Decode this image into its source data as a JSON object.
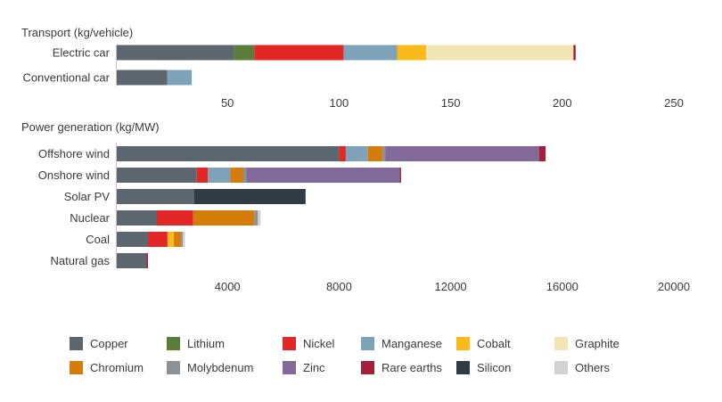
{
  "colors": {
    "Copper": "#5b666e",
    "Lithium": "#5b7c3a",
    "Nickel": "#e32726",
    "Manganese": "#7ea3b9",
    "Cobalt": "#fbb91a",
    "Graphite": "#f1e5b5",
    "Chromium": "#d47d0d",
    "Molybdenum": "#8a9197",
    "Zinc": "#83699a",
    "Rare earths": "#a3203c",
    "Silicon": "#2f3c45",
    "Others": "#d2d2d2"
  },
  "chart_data": [
    {
      "type": "bar",
      "orientation": "horizontal",
      "stacked": true,
      "title": "Transport (kg/vehicle)",
      "categories": [
        "Electric car",
        "Conventional car"
      ],
      "xlim": [
        0,
        250
      ],
      "xticks": [
        50,
        100,
        150,
        200,
        250
      ],
      "series": [
        {
          "name": "Copper",
          "values": [
            53,
            23
          ]
        },
        {
          "name": "Lithium",
          "values": [
            9,
            0
          ]
        },
        {
          "name": "Nickel",
          "values": [
            40,
            0
          ]
        },
        {
          "name": "Manganese",
          "values": [
            24,
            11
          ]
        },
        {
          "name": "Cobalt",
          "values": [
            13,
            0
          ]
        },
        {
          "name": "Graphite",
          "values": [
            66,
            0
          ]
        },
        {
          "name": "Rare earths",
          "values": [
            1,
            0
          ]
        }
      ]
    },
    {
      "type": "bar",
      "orientation": "horizontal",
      "stacked": true,
      "title": "Power generation (kg/MW)",
      "categories": [
        "Offshore wind",
        "Onshore wind",
        "Solar PV",
        "Nuclear",
        "Coal",
        "Natural gas"
      ],
      "xlim": [
        0,
        20000
      ],
      "xticks": [
        4000,
        8000,
        12000,
        16000,
        20000
      ],
      "series": [
        {
          "name": "Copper",
          "values": [
            8000,
            2900,
            2800,
            1470,
            1150,
            1100
          ]
        },
        {
          "name": "Nickel",
          "values": [
            240,
            400,
            0,
            1300,
            700,
            0
          ]
        },
        {
          "name": "Manganese",
          "values": [
            790,
            800,
            0,
            0,
            0,
            0
          ]
        },
        {
          "name": "Cobalt",
          "values": [
            0,
            0,
            0,
            0,
            230,
            0
          ]
        },
        {
          "name": "Chromium",
          "values": [
            525,
            470,
            0,
            2190,
            260,
            0
          ]
        },
        {
          "name": "Molybdenum",
          "values": [
            110,
            100,
            0,
            130,
            60,
            0
          ]
        },
        {
          "name": "Zinc",
          "values": [
            5500,
            5500,
            0,
            0,
            0,
            0
          ]
        },
        {
          "name": "Rare earths",
          "values": [
            240,
            50,
            0,
            0,
            0,
            50
          ]
        },
        {
          "name": "Silicon",
          "values": [
            0,
            0,
            4000,
            0,
            0,
            0
          ]
        },
        {
          "name": "Others",
          "values": [
            0,
            0,
            0,
            100,
            80,
            0
          ]
        }
      ]
    }
  ],
  "legend": [
    "Copper",
    "Lithium",
    "Nickel",
    "Manganese",
    "Cobalt",
    "Graphite",
    "Chromium",
    "Molybdenum",
    "Zinc",
    "Rare earths",
    "Silicon",
    "Others"
  ]
}
